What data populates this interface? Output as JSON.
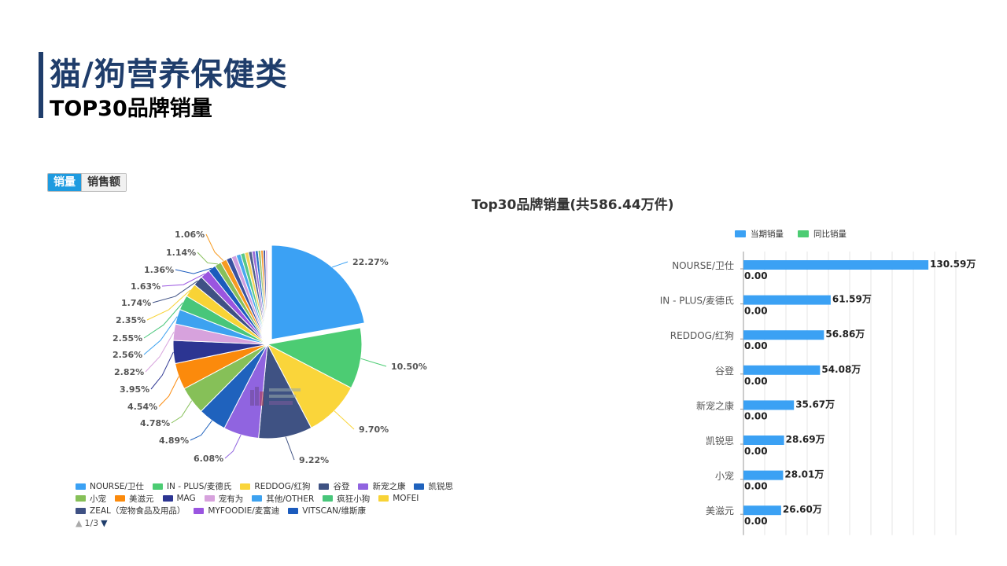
{
  "header": {
    "title": "猫/狗营养保健类",
    "subtitle": "TOP30品牌销量"
  },
  "toggle": {
    "active": "销量",
    "inactive": "销售额"
  },
  "chart_title": "Top30品牌销量(共586.44万件)",
  "chart_data": [
    {
      "type": "pie",
      "slices": [
        {
          "name": "NOURSE/卫仕",
          "value": 22.27,
          "label": "22.27%",
          "color": "#3ba1f4"
        },
        {
          "name": "IN - PLUS/麦德氏",
          "value": 10.5,
          "label": "10.50%",
          "color": "#4ccc73"
        },
        {
          "name": "REDDOG/红狗",
          "value": 9.7,
          "label": "9.70%",
          "color": "#fad53a"
        },
        {
          "name": "谷登",
          "value": 9.22,
          "label": "9.22%",
          "color": "#3f5283"
        },
        {
          "name": "新宠之康",
          "value": 6.08,
          "label": "6.08%",
          "color": "#9064e0"
        },
        {
          "name": "凯锐思",
          "value": 4.89,
          "label": "4.89%",
          "color": "#1f62bd"
        },
        {
          "name": "小宠",
          "value": 4.78,
          "label": "4.78%",
          "color": "#86c058"
        },
        {
          "name": "美滋元",
          "value": 4.54,
          "label": "4.54%",
          "color": "#fb8a0c"
        },
        {
          "name": "MAG",
          "value": 3.95,
          "label": "3.95%",
          "color": "#2c3592"
        },
        {
          "name": "宠有为",
          "value": 2.82,
          "label": "2.82%",
          "color": "#d7a2dd"
        },
        {
          "name": "其他/OTHER",
          "value": 2.56,
          "label": "2.56%",
          "color": "#3da2f0"
        },
        {
          "name": "疯狂小狗",
          "value": 2.55,
          "label": "2.55%",
          "color": "#48c67a"
        },
        {
          "name": "MOFEI",
          "value": 2.35,
          "label": "2.35%",
          "color": "#f8d336"
        },
        {
          "name": "ZEAL（宠物食品及用品）",
          "value": 1.74,
          "label": "1.74%",
          "color": "#3f5184"
        },
        {
          "name": "MYFOODIE/麦富迪",
          "value": 1.63,
          "label": "1.63%",
          "color": "#9a55e0"
        },
        {
          "name": "VITSCAN/维斯康",
          "value": 1.36,
          "label": "1.36%",
          "color": "#1b5bbd"
        },
        {
          "name": "",
          "value": 1.14,
          "label": "1.14%",
          "color": "#87bf5b"
        },
        {
          "name": "",
          "value": 1.06,
          "label": "1.06%",
          "color": "#f79b21"
        },
        {
          "name": "",
          "value": 0.95,
          "label": "",
          "color": "#3a52a0"
        },
        {
          "name": "",
          "value": 0.85,
          "label": "",
          "color": "#cf9fe0"
        },
        {
          "name": "",
          "value": 0.78,
          "label": "",
          "color": "#48a8ee"
        },
        {
          "name": "",
          "value": 0.72,
          "label": "",
          "color": "#58c887"
        },
        {
          "name": "",
          "value": 0.66,
          "label": "",
          "color": "#f4d35b"
        },
        {
          "name": "",
          "value": 0.6,
          "label": "",
          "color": "#4f5e8e"
        },
        {
          "name": "",
          "value": 0.55,
          "label": "",
          "color": "#9b6fd9"
        },
        {
          "name": "",
          "value": 0.5,
          "label": "",
          "color": "#2c73c8"
        },
        {
          "name": "",
          "value": 0.46,
          "label": "",
          "color": "#98c572"
        },
        {
          "name": "",
          "value": 0.42,
          "label": "",
          "color": "#f99b36"
        },
        {
          "name": "",
          "value": 0.38,
          "label": "",
          "color": "#3d4aa0"
        },
        {
          "name": "",
          "value": 0.34,
          "label": "",
          "color": "#d8aee2"
        }
      ],
      "legend": [
        {
          "name": "NOURSE/卫仕",
          "color": "#3ba1f4"
        },
        {
          "name": "IN - PLUS/麦德氏",
          "color": "#4ccc73"
        },
        {
          "name": "REDDOG/红狗",
          "color": "#fad53a"
        },
        {
          "name": "谷登",
          "color": "#3f5283"
        },
        {
          "name": "新宠之康",
          "color": "#9064e0"
        },
        {
          "name": "凯锐思",
          "color": "#1f62bd"
        },
        {
          "name": "小宠",
          "color": "#86c058"
        },
        {
          "name": "美滋元",
          "color": "#fb8a0c"
        },
        {
          "name": "MAG",
          "color": "#2c3592"
        },
        {
          "name": "宠有为",
          "color": "#d7a2dd"
        },
        {
          "name": "其他/OTHER",
          "color": "#3da2f0"
        },
        {
          "name": "疯狂小狗",
          "color": "#48c67a"
        },
        {
          "name": "MOFEI",
          "color": "#f8d336"
        },
        {
          "name": "ZEAL（宠物食品及用品）",
          "color": "#3f5184"
        },
        {
          "name": "MYFOODIE/麦富迪",
          "color": "#9a55e0"
        },
        {
          "name": "VITSCAN/维斯康",
          "color": "#1b5bbd"
        }
      ],
      "legend_placement": "bottom",
      "pager": "1/3"
    },
    {
      "type": "bar",
      "orientation": "horizontal",
      "categories": [
        "NOURSE/卫仕",
        "IN - PLUS/麦德氏",
        "REDDOG/红狗",
        "谷登",
        "新宠之康",
        "凯锐思",
        "小宠",
        "美滋元"
      ],
      "series": [
        {
          "name": "当期销量",
          "color": "#3ba1f4",
          "values": [
            130.59,
            61.59,
            56.86,
            54.08,
            35.67,
            28.69,
            28.01,
            26.6
          ],
          "labels": [
            "130.59万",
            "61.59万",
            "56.86万",
            "54.08万",
            "35.67万",
            "28.69万",
            "28.01万",
            "26.60万"
          ]
        },
        {
          "name": "同比销量",
          "color": "#4ccc73",
          "values": [
            0,
            0,
            0,
            0,
            0,
            0,
            0,
            0
          ],
          "labels": [
            "0.00",
            "0.00",
            "0.00",
            "0.00",
            "0.00",
            "0.00",
            "0.00",
            "0.00"
          ]
        }
      ],
      "xlim": [
        0,
        150
      ],
      "grid": true,
      "legend_placement": "top"
    }
  ]
}
